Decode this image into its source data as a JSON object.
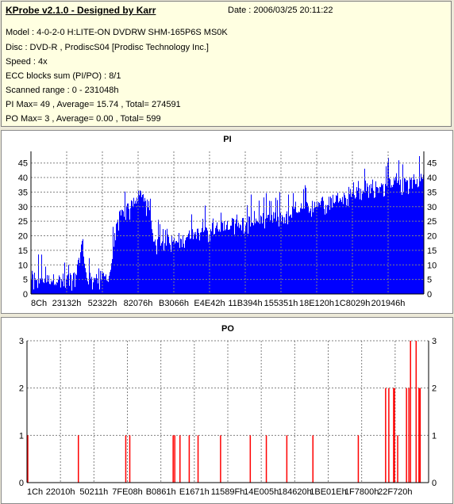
{
  "info": {
    "title": "KProbe v2.1.0 - Designed by Karr",
    "date": "Date : 2006/03/25 20:11:22",
    "model": "Model : 4-0-2-0 H:LITE-ON DVDRW SHM-165P6S MS0K",
    "disc": "Disc : DVD-R , ProdiscS04   [Prodisc Technology Inc.]",
    "speed": "Speed : 4x",
    "ecc": "ECC blocks sum (PI/PO) : 8/1",
    "range": "Scanned range : 0 - 231048h",
    "pi_stats": "PI Max= 49 , Average= 15.74 , Total= 274591",
    "po_stats": "PO Max= 3 , Average= 0.00 , Total= 599"
  },
  "chart_data": [
    {
      "type": "area",
      "title": "PI",
      "color": "#0000FF",
      "grid_color": "#808080",
      "ylim": [
        0,
        49
      ],
      "y_ticks": [
        0,
        5,
        10,
        15,
        20,
        25,
        30,
        35,
        40,
        45
      ],
      "x_tick_labels": [
        "8Ch",
        "23132h",
        "52322h",
        "82076h",
        "B3066h",
        "E4E42h",
        "11B394h",
        "155351h",
        "18E120h",
        "1C8029h",
        "201946h"
      ],
      "x_profile": [
        0,
        0.02,
        0.04,
        0.06,
        0.075,
        0.11,
        0.12,
        0.125,
        0.13,
        0.135,
        0.14,
        0.16,
        0.19,
        0.2,
        0.22,
        0.25,
        0.28,
        0.3,
        0.31,
        0.33,
        0.4,
        0.45,
        0.5,
        0.55,
        0.6,
        0.65,
        0.7,
        0.75,
        0.8,
        0.85,
        0.9,
        0.95,
        1
      ],
      "y_profile": [
        6,
        6,
        5,
        5,
        5,
        6,
        10,
        14,
        19,
        12,
        6,
        6,
        6,
        7,
        26,
        30,
        35,
        30,
        19,
        18,
        20,
        22,
        24,
        25,
        26,
        27,
        30,
        32,
        34,
        36,
        38,
        39,
        40
      ],
      "peak_max": 49
    },
    {
      "type": "bar",
      "title": "PO",
      "color": "#FF0000",
      "grid_color": "#808080",
      "ylim": [
        0,
        3
      ],
      "y_ticks": [
        0,
        1,
        2,
        3
      ],
      "x_tick_labels": [
        "1Ch",
        "22010h",
        "50211h",
        "7FE08h",
        "B0861h",
        "E1671h",
        "11589Fh",
        "14E005h",
        "184620h",
        "1BE01Eh",
        "1F7800h",
        "22F720h"
      ],
      "x": [
        0.0,
        0.126,
        0.244,
        0.254,
        0.362,
        0.366,
        0.379,
        0.402,
        0.424,
        0.48,
        0.554,
        0.594,
        0.645,
        0.71,
        0.823,
        0.891,
        0.899,
        0.911,
        0.913,
        0.921,
        0.943,
        0.949,
        0.953,
        0.967,
        0.974,
        0.977
      ],
      "values": [
        1,
        1,
        1,
        1,
        1,
        1,
        1,
        1,
        1,
        1,
        1,
        1,
        1,
        1,
        1,
        2,
        2,
        2,
        2,
        1,
        2,
        2,
        3,
        3,
        2,
        2
      ]
    }
  ]
}
